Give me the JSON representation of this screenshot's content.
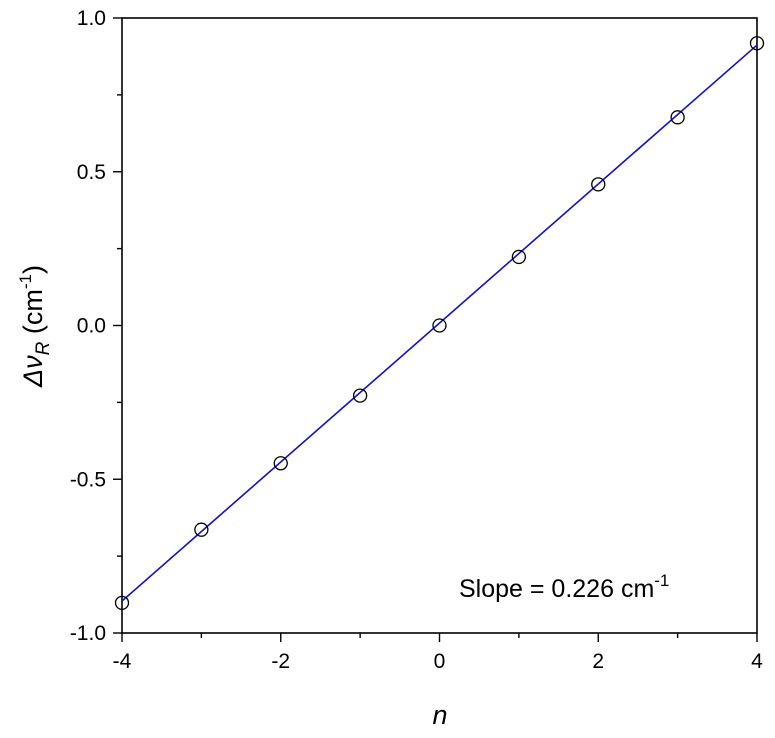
{
  "chart_data": {
    "type": "scatter",
    "xlabel": "n",
    "ylabel": {
      "symbol": "Δν",
      "subscript": "R",
      "unit_prefix": " (cm",
      "unit_superscript": "-1",
      "unit_suffix": ")"
    },
    "xlim": [
      -4,
      4
    ],
    "ylim": [
      -1.0,
      1.0
    ],
    "x_ticks": [
      {
        "value": -4,
        "label": "-4"
      },
      {
        "value": -2,
        "label": "-2"
      },
      {
        "value": 0,
        "label": "0"
      },
      {
        "value": 2,
        "label": "2"
      },
      {
        "value": 4,
        "label": "4"
      }
    ],
    "x_minor_ticks": [
      -3,
      -1,
      1,
      3
    ],
    "y_ticks": [
      {
        "value": -1.0,
        "label": "-1.0"
      },
      {
        "value": -0.5,
        "label": "-0.5"
      },
      {
        "value": 0.0,
        "label": "0.0"
      },
      {
        "value": 0.5,
        "label": "0.5"
      },
      {
        "value": 1.0,
        "label": "1.0"
      }
    ],
    "y_minor_ticks": [
      -0.75,
      -0.25,
      0.25,
      0.75
    ],
    "grid": false,
    "series": [
      {
        "kind": "points",
        "marker": "open-circle",
        "color": "#000000",
        "x": [
          -4,
          -3,
          -2,
          -1,
          0,
          1,
          2,
          3,
          4
        ],
        "y": [
          -0.902,
          -0.664,
          -0.448,
          -0.228,
          0.0,
          0.223,
          0.459,
          0.677,
          0.918
        ]
      },
      {
        "kind": "fit-line",
        "color": "#1010c8",
        "x": [
          -4,
          4
        ],
        "y": [
          -0.896,
          0.912
        ]
      }
    ],
    "annotation": {
      "prefix": "Slope = 0.226 cm",
      "superscript": "-1"
    }
  }
}
